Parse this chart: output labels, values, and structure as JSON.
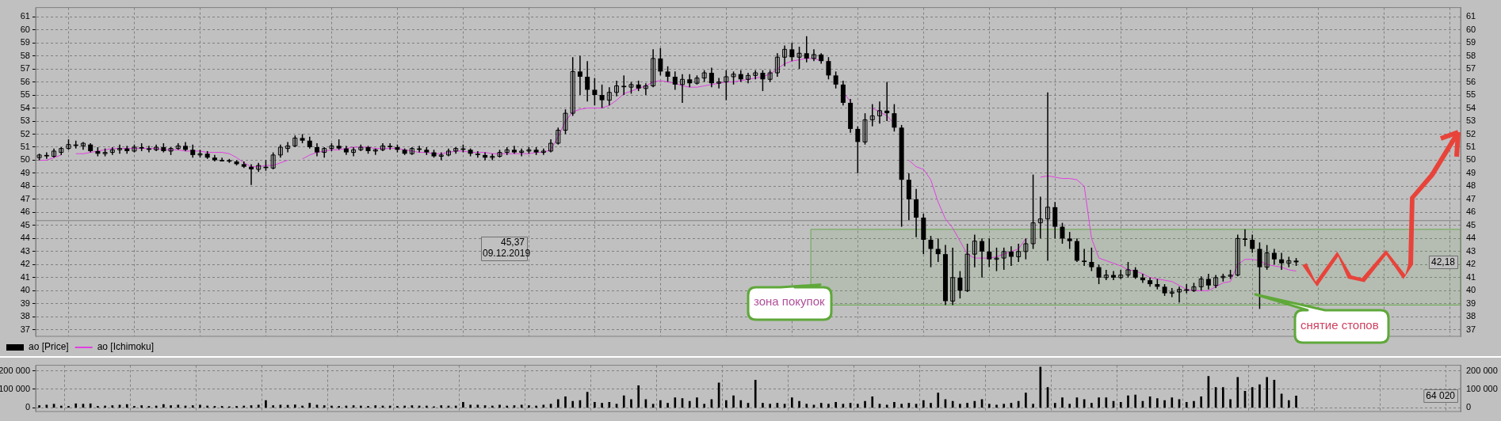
{
  "chart_data": [
    {
      "type": "candlestick",
      "categories": [
        null,
        null,
        null,
        null,
        null,
        null,
        null,
        null,
        null,
        null,
        null,
        null,
        null,
        null,
        null,
        null,
        null,
        null,
        null,
        null,
        null,
        null,
        null,
        null,
        null,
        null,
        null,
        null,
        null,
        null,
        null,
        null,
        null,
        null,
        null,
        null,
        null,
        null,
        null,
        null,
        null,
        null,
        null,
        null,
        null,
        null,
        null,
        null,
        null,
        null,
        null,
        null,
        null,
        null,
        null,
        null,
        null,
        null,
        null,
        null,
        null,
        null,
        null,
        null,
        null,
        null,
        null,
        null,
        null,
        null,
        null,
        null,
        null,
        null,
        null,
        null,
        null,
        null,
        null,
        null,
        null,
        null,
        null,
        null,
        null,
        null,
        null,
        null,
        null,
        null,
        null,
        null,
        null,
        null,
        null,
        null,
        null,
        null,
        null,
        null,
        null,
        null,
        null,
        null,
        null,
        null,
        null,
        null,
        null,
        null,
        null,
        null,
        null,
        null,
        null,
        null,
        null,
        null,
        null,
        null,
        null,
        null,
        null,
        null,
        null,
        null,
        null,
        null,
        null,
        null,
        null,
        null,
        null,
        null,
        null,
        null,
        null,
        null,
        null,
        null,
        null,
        null,
        null,
        null,
        null,
        null,
        null,
        null,
        null,
        null,
        null,
        null,
        null,
        null,
        null,
        null,
        null,
        null,
        null,
        null,
        null,
        null,
        null,
        null,
        null,
        null,
        null,
        null,
        null,
        null,
        null,
        null,
        null,
        null,
        null,
        null,
        null,
        null,
        null,
        null,
        null,
        null,
        null,
        null,
        null,
        null,
        null,
        null,
        null,
        null,
        null,
        null,
        null,
        null,
        null
      ],
      "series": [
        {
          "name": "ао [Price]",
          "type": "candlestick",
          "color": "#000000",
          "ohlc": [
            [
              50.2,
              50.5,
              50.0,
              50.4
            ],
            [
              50.4,
              50.6,
              50.1,
              50.3
            ],
            [
              50.3,
              50.9,
              50.2,
              50.7
            ],
            [
              50.6,
              51.0,
              50.4,
              50.9
            ],
            [
              50.9,
              51.6,
              50.8,
              51.2
            ],
            [
              51.2,
              51.5,
              50.9,
              51.1
            ],
            [
              51.1,
              51.4,
              50.8,
              51.3
            ],
            [
              51.2,
              51.3,
              50.6,
              50.7
            ],
            [
              50.7,
              51.0,
              50.3,
              50.5
            ],
            [
              50.5,
              50.9,
              50.3,
              50.6
            ],
            [
              50.6,
              51.0,
              50.4,
              50.8
            ],
            [
              50.8,
              51.2,
              50.5,
              50.9
            ],
            [
              50.9,
              51.1,
              50.5,
              50.7
            ],
            [
              50.7,
              51.2,
              50.6,
              51.0
            ],
            [
              51.0,
              51.3,
              50.7,
              50.9
            ],
            [
              50.9,
              51.1,
              50.6,
              50.8
            ],
            [
              50.8,
              51.2,
              50.7,
              51.0
            ],
            [
              51.0,
              51.3,
              50.6,
              50.7
            ],
            [
              50.7,
              51.0,
              50.4,
              50.9
            ],
            [
              50.9,
              51.3,
              50.8,
              51.1
            ],
            [
              51.1,
              51.4,
              50.7,
              50.8
            ],
            [
              50.8,
              51.2,
              50.2,
              50.4
            ],
            [
              50.4,
              50.8,
              50.2,
              50.5
            ],
            [
              50.5,
              50.7,
              50.1,
              50.2
            ],
            [
              50.2,
              50.4,
              49.9,
              50.0
            ],
            [
              50.0,
              50.2,
              49.9,
              50.0
            ],
            [
              50.0,
              50.1,
              49.8,
              49.9
            ],
            [
              49.9,
              50.0,
              49.6,
              49.7
            ],
            [
              49.7,
              49.9,
              49.4,
              49.5
            ],
            [
              49.5,
              49.7,
              48.1,
              49.3
            ],
            [
              49.3,
              49.8,
              49.1,
              49.6
            ],
            [
              49.5,
              50.0,
              49.2,
              49.4
            ],
            [
              49.4,
              50.6,
              49.3,
              50.4
            ],
            [
              50.4,
              51.2,
              50.2,
              51.0
            ],
            [
              50.9,
              51.4,
              50.6,
              51.1
            ],
            [
              51.1,
              51.9,
              51.0,
              51.7
            ],
            [
              51.7,
              52.0,
              51.3,
              51.5
            ],
            [
              51.5,
              51.8,
              50.9,
              51.0
            ],
            [
              51.0,
              51.3,
              50.3,
              50.6
            ],
            [
              50.6,
              51.0,
              50.2,
              50.9
            ],
            [
              50.9,
              51.3,
              50.7,
              51.1
            ],
            [
              51.1,
              51.6,
              50.8,
              50.9
            ],
            [
              50.9,
              51.1,
              50.4,
              50.6
            ],
            [
              50.6,
              51.0,
              50.3,
              50.8
            ],
            [
              50.8,
              51.2,
              50.7,
              51.0
            ],
            [
              51.0,
              51.1,
              50.5,
              50.7
            ],
            [
              50.7,
              50.9,
              50.4,
              50.8
            ],
            [
              50.8,
              51.3,
              50.7,
              51.1
            ],
            [
              51.1,
              51.3,
              50.8,
              51.0
            ],
            [
              51.0,
              51.2,
              50.6,
              50.8
            ],
            [
              50.8,
              50.9,
              50.4,
              50.5
            ],
            [
              50.5,
              51.0,
              50.4,
              50.9
            ],
            [
              50.9,
              51.1,
              50.6,
              50.8
            ],
            [
              50.8,
              51.0,
              50.4,
              50.6
            ],
            [
              50.6,
              50.8,
              50.2,
              50.3
            ],
            [
              50.3,
              50.6,
              50.0,
              50.4
            ],
            [
              50.4,
              50.9,
              50.3,
              50.7
            ],
            [
              50.7,
              51.0,
              50.5,
              50.9
            ],
            [
              50.9,
              51.2,
              50.6,
              50.8
            ],
            [
              50.8,
              50.9,
              50.3,
              50.5
            ],
            [
              50.5,
              50.7,
              50.2,
              50.4
            ],
            [
              50.4,
              50.6,
              50.0,
              50.2
            ],
            [
              50.2,
              50.5,
              50.0,
              50.3
            ],
            [
              50.3,
              50.8,
              50.2,
              50.6
            ],
            [
              50.6,
              51.0,
              50.4,
              50.8
            ],
            [
              50.8,
              51.1,
              50.5,
              50.6
            ],
            [
              50.6,
              50.9,
              50.3,
              50.7
            ],
            [
              50.7,
              51.0,
              50.5,
              50.8
            ],
            [
              50.8,
              51.0,
              50.4,
              50.6
            ],
            [
              50.6,
              50.9,
              50.4,
              50.7
            ],
            [
              50.7,
              51.6,
              50.6,
              51.3
            ],
            [
              51.3,
              52.5,
              51.2,
              52.3
            ],
            [
              52.3,
              53.9,
              52.0,
              53.6
            ],
            [
              53.6,
              57.9,
              53.4,
              56.8
            ],
            [
              56.8,
              58.0,
              55.0,
              56.4
            ],
            [
              56.4,
              57.6,
              54.5,
              55.4
            ],
            [
              55.4,
              56.3,
              54.2,
              55.0
            ],
            [
              55.0,
              55.8,
              54.0,
              54.6
            ],
            [
              54.6,
              55.6,
              54.2,
              55.2
            ],
            [
              55.2,
              56.1,
              54.9,
              55.7
            ],
            [
              55.7,
              56.5,
              55.0,
              55.6
            ],
            [
              55.6,
              56.0,
              55.1,
              55.8
            ],
            [
              55.8,
              56.1,
              55.3,
              55.5
            ],
            [
              55.5,
              55.9,
              55.0,
              55.7
            ],
            [
              55.7,
              58.5,
              55.6,
              57.8
            ],
            [
              57.8,
              58.6,
              56.5,
              56.8
            ],
            [
              56.8,
              57.2,
              56.0,
              56.4
            ],
            [
              56.4,
              56.8,
              55.4,
              55.8
            ],
            [
              55.8,
              56.6,
              54.4,
              56.2
            ],
            [
              56.2,
              56.6,
              55.6,
              55.9
            ],
            [
              55.9,
              56.5,
              55.8,
              56.3
            ],
            [
              56.3,
              56.9,
              56.0,
              56.7
            ],
            [
              56.7,
              57.1,
              55.6,
              55.9
            ],
            [
              55.9,
              56.3,
              55.5,
              56.0
            ],
            [
              56.0,
              56.9,
              54.6,
              56.4
            ],
            [
              56.4,
              56.8,
              55.8,
              56.6
            ],
            [
              56.6,
              56.9,
              56.0,
              56.2
            ],
            [
              56.2,
              56.7,
              55.9,
              56.5
            ],
            [
              56.5,
              56.9,
              56.2,
              56.7
            ],
            [
              56.7,
              56.9,
              55.3,
              56.2
            ],
            [
              56.2,
              56.9,
              56.0,
              56.7
            ],
            [
              56.7,
              58.2,
              56.4,
              57.9
            ],
            [
              57.9,
              58.8,
              57.2,
              58.5
            ],
            [
              58.5,
              59.0,
              57.6,
              57.9
            ],
            [
              57.9,
              58.7,
              57.0,
              58.2
            ],
            [
              58.2,
              59.5,
              57.5,
              57.8
            ],
            [
              57.8,
              58.5,
              57.6,
              58.1
            ],
            [
              58.1,
              58.2,
              57.4,
              57.6
            ],
            [
              57.6,
              57.9,
              56.2,
              56.5
            ],
            [
              56.5,
              56.8,
              55.5,
              55.8
            ],
            [
              55.8,
              56.1,
              54.2,
              54.4
            ],
            [
              54.4,
              54.7,
              52.1,
              52.4
            ],
            [
              52.4,
              52.6,
              49.0,
              51.4
            ],
            [
              51.4,
              53.6,
              51.2,
              53.1
            ],
            [
              53.1,
              54.3,
              52.6,
              53.4
            ],
            [
              53.4,
              54.5,
              52.8,
              53.8
            ],
            [
              53.8,
              56.0,
              53.0,
              53.6
            ],
            [
              53.6,
              54.3,
              52.2,
              52.5
            ],
            [
              52.5,
              52.7,
              44.9,
              48.5
            ],
            [
              48.5,
              49.0,
              45.4,
              47.0
            ],
            [
              47.0,
              47.8,
              44.1,
              45.6
            ],
            [
              45.6,
              45.9,
              42.8,
              43.9
            ],
            [
              43.9,
              44.2,
              41.8,
              43.2
            ],
            [
              43.2,
              44.0,
              42.2,
              42.8
            ],
            [
              42.8,
              43.5,
              38.9,
              39.2
            ],
            [
              39.2,
              43.3,
              38.9,
              41.0
            ],
            [
              41.0,
              41.5,
              39.4,
              40.0
            ],
            [
              40.0,
              43.6,
              39.9,
              42.8
            ],
            [
              42.8,
              44.3,
              41.8,
              43.8
            ],
            [
              43.8,
              44.0,
              41.0,
              43.0
            ],
            [
              43.0,
              44.0,
              41.8,
              42.4
            ],
            [
              42.4,
              43.3,
              41.5,
              42.5
            ],
            [
              42.5,
              43.3,
              41.6,
              43.0
            ],
            [
              43.0,
              43.4,
              41.9,
              42.6
            ],
            [
              42.6,
              43.6,
              42.2,
              43.0
            ],
            [
              43.0,
              44.0,
              42.4,
              43.6
            ],
            [
              43.6,
              48.9,
              43.2,
              45.2
            ],
            [
              45.2,
              47.2,
              44.0,
              45.5
            ],
            [
              45.5,
              55.2,
              42.3,
              46.4
            ],
            [
              46.4,
              46.8,
              44.0,
              44.9
            ],
            [
              44.9,
              45.2,
              43.6,
              44.0
            ],
            [
              44.0,
              44.5,
              43.2,
              43.8
            ],
            [
              43.8,
              44.0,
              42.2,
              42.3
            ],
            [
              42.3,
              43.2,
              41.9,
              42.2
            ],
            [
              42.2,
              43.3,
              41.5,
              41.8
            ],
            [
              41.8,
              42.0,
              40.5,
              41.0
            ],
            [
              41.0,
              41.6,
              40.8,
              41.2
            ],
            [
              41.2,
              41.5,
              40.8,
              41.0
            ],
            [
              41.0,
              41.6,
              40.9,
              41.2
            ],
            [
              41.2,
              42.2,
              41.0,
              41.6
            ],
            [
              41.6,
              41.8,
              40.9,
              41.0
            ],
            [
              41.0,
              41.3,
              40.6,
              40.8
            ],
            [
              40.8,
              41.0,
              40.3,
              40.5
            ],
            [
              40.5,
              40.9,
              40.1,
              40.3
            ],
            [
              40.3,
              40.5,
              39.6,
              39.8
            ],
            [
              39.8,
              40.2,
              39.5,
              39.9
            ],
            [
              39.9,
              40.3,
              39.1,
              40.1
            ],
            [
              40.1,
              40.5,
              39.8,
              40.0
            ],
            [
              40.0,
              40.6,
              39.9,
              40.3
            ],
            [
              40.3,
              41.1,
              40.0,
              40.9
            ],
            [
              40.9,
              41.3,
              40.1,
              40.4
            ],
            [
              40.4,
              41.2,
              40.2,
              41.0
            ],
            [
              41.0,
              41.3,
              40.7,
              41.1
            ],
            [
              41.1,
              41.6,
              40.9,
              41.2
            ],
            [
              41.2,
              44.3,
              41.1,
              44.0
            ],
            [
              44.0,
              44.7,
              43.4,
              43.9
            ],
            [
              43.9,
              44.3,
              42.9,
              43.2
            ],
            [
              43.2,
              43.7,
              38.6,
              41.8
            ],
            [
              41.8,
              43.5,
              41.6,
              42.9
            ],
            [
              42.9,
              43.2,
              42.0,
              42.4
            ],
            [
              42.4,
              42.9,
              41.6,
              42.1
            ],
            [
              42.1,
              42.6,
              41.8,
              42.3
            ],
            [
              42.3,
              42.5,
              41.9,
              42.18
            ],
            null,
            null,
            null,
            null,
            null,
            null,
            null,
            null,
            null,
            null,
            null,
            null,
            null,
            null,
            null,
            null,
            null,
            null,
            null,
            null,
            null,
            null
          ]
        },
        {
          "name": "ао [Ichimoku]",
          "type": "line",
          "color": "#e040e0",
          "values": [
            50.0,
            50.0,
            50.2,
            50.4,
            null,
            50.5,
            50.5,
            50.6,
            50.7,
            50.8,
            50.9,
            50.9,
            50.9,
            50.9,
            50.9,
            50.9,
            50.9,
            50.8,
            50.8,
            50.8,
            50.7,
            50.7,
            50.7,
            50.6,
            50.6,
            50.6,
            50.5,
            50.2,
            49.8,
            49.5,
            49.5,
            49.6,
            49.6,
            49.8,
            50.0,
            null,
            50.1,
            50.4,
            50.6,
            50.7,
            50.8,
            50.8,
            50.9,
            51.0,
            51.0,
            51.0,
            50.9,
            50.9,
            50.9,
            50.9,
            50.8,
            50.7,
            50.6,
            50.6,
            50.5,
            50.5,
            50.6,
            50.7,
            50.7,
            50.6,
            50.6,
            50.6,
            50.5,
            50.5,
            50.5,
            50.5,
            50.5,
            50.5,
            50.6,
            50.6,
            50.8,
            51.8,
            53.0,
            53.7,
            53.9,
            54.0,
            54.0,
            54.0,
            54.2,
            54.6,
            55.1,
            55.3,
            55.5,
            55.7,
            56.0,
            56.1,
            56.0,
            55.9,
            55.7,
            55.6,
            55.6,
            55.7,
            55.8,
            55.9,
            56.0,
            56.0,
            56.1,
            56.2,
            56.3,
            56.4,
            56.6,
            57.0,
            57.4,
            57.6,
            57.7,
            57.8,
            57.8,
            57.6,
            null,
            null,
            55.2,
            54.5,
            null,
            null,
            54.0,
            53.7,
            53.4,
            52.8,
            null,
            50.0,
            49.5,
            49.3,
            48.5,
            46.8,
            45.5,
            44.8,
            43.8,
            42.8,
            42.5,
            42.5,
            42.5,
            42.6,
            42.8,
            43.0,
            43.2,
            44.0,
            null,
            48.7,
            48.8,
            48.7,
            48.6,
            48.6,
            48.5,
            48.0,
            44.0,
            42.5,
            42.3,
            42.1,
            41.9,
            41.6,
            41.5,
            41.3,
            41.0,
            40.9,
            40.8,
            40.7,
            40.4,
            40.1,
            40.0,
            40.0,
            40.0,
            40.3,
            40.6,
            40.7,
            42.0,
            42.4,
            42.4,
            42.3,
            42.0,
            41.9,
            41.8,
            41.6,
            41.5,
            null,
            null,
            null,
            null,
            null,
            null,
            null,
            null,
            null,
            null,
            null,
            null,
            null,
            null,
            null,
            null,
            null,
            null,
            null,
            null,
            null,
            null
          ]
        }
      ],
      "ylim": [
        36.5,
        61.7
      ],
      "yticks": [
        37,
        38,
        39,
        40,
        41,
        42,
        43,
        44,
        45,
        46,
        47,
        48,
        49,
        50,
        51,
        52,
        53,
        54,
        55,
        56,
        57,
        58,
        59,
        60,
        61
      ],
      "y2lim": [
        36.5,
        61.7
      ],
      "y2ticks": [
        37,
        38,
        39,
        40,
        41,
        42,
        43,
        44,
        45,
        46,
        47,
        48,
        49,
        50,
        51,
        52,
        53,
        54,
        55,
        56,
        57,
        58,
        59,
        60,
        61
      ],
      "grid": true,
      "legend": "bottom left",
      "marker": "none",
      "line_style": "solid",
      "bands": [
        {
          "axis": "y",
          "from": 38.9,
          "to": 44.7,
          "label": "зона покупок",
          "color": "#6aa84f"
        }
      ],
      "ref_lines": [
        {
          "axis": "y",
          "value": 45.37,
          "label": "45,37",
          "color": "#808080"
        }
      ],
      "annotations": [
        "09.12.2019",
        "42,18",
        "снятие стопов"
      ]
    },
    {
      "type": "bar",
      "categories": [
        null,
        null,
        null,
        null,
        null,
        null,
        null,
        null,
        null,
        null,
        null,
        null,
        null,
        null,
        null,
        null,
        null,
        null,
        null,
        null,
        null,
        null,
        null,
        null,
        null,
        null,
        null,
        null,
        null,
        null,
        null,
        null,
        null,
        null,
        null,
        null,
        null,
        null,
        null,
        null,
        null,
        null,
        null,
        null,
        null,
        null,
        null,
        null,
        null,
        null,
        null,
        null,
        null,
        null,
        null,
        null,
        null,
        null,
        null,
        null,
        null,
        null,
        null,
        null,
        null,
        null,
        null,
        null,
        null,
        null,
        null,
        null,
        null,
        null,
        null,
        null,
        null,
        null,
        null,
        null,
        null,
        null,
        null,
        null,
        null,
        null,
        null,
        null,
        null,
        null,
        null,
        null,
        null,
        null,
        null,
        null,
        null,
        null,
        null,
        null,
        null,
        null,
        null,
        null,
        null,
        null,
        null,
        null,
        null,
        null,
        null,
        null,
        null,
        null,
        null,
        null,
        null,
        null,
        null,
        null,
        null,
        null,
        null,
        null,
        null,
        null,
        null,
        null,
        null,
        null,
        null,
        null,
        null,
        null,
        null,
        null,
        null,
        null,
        null,
        null,
        null,
        null,
        null,
        null,
        null,
        null,
        null,
        null,
        null,
        null,
        null,
        null,
        null,
        null,
        null,
        null,
        null,
        null,
        null,
        null,
        null,
        null,
        null,
        null,
        null,
        null,
        null,
        null,
        null,
        null,
        null,
        null,
        null,
        null,
        null,
        null,
        null,
        null,
        null,
        null,
        null,
        null,
        null,
        null,
        null,
        null,
        null,
        null,
        null,
        null,
        null,
        null,
        null,
        null,
        null
      ],
      "values": [
        12000,
        15000,
        20000,
        10000,
        8000,
        22000,
        20000,
        22000,
        8000,
        10000,
        12000,
        15000,
        18000,
        8000,
        12000,
        8000,
        10000,
        18000,
        12000,
        15000,
        10000,
        12000,
        15000,
        10000,
        8000,
        8000,
        6000,
        8000,
        10000,
        12000,
        15000,
        40000,
        12000,
        15000,
        14000,
        16000,
        10000,
        25000,
        15000,
        12000,
        10000,
        8000,
        10000,
        12000,
        10000,
        8000,
        12000,
        10000,
        10000,
        8000,
        10000,
        12000,
        10000,
        10000,
        6000,
        12000,
        10000,
        10000,
        30000,
        15000,
        15000,
        12000,
        10000,
        15000,
        10000,
        12000,
        15000,
        12000,
        10000,
        15000,
        20000,
        45000,
        60000,
        35000,
        40000,
        85000,
        30000,
        25000,
        30000,
        20000,
        65000,
        45000,
        120000,
        45000,
        20000,
        40000,
        25000,
        55000,
        50000,
        35000,
        55000,
        20000,
        45000,
        135000,
        40000,
        65000,
        40000,
        25000,
        150000,
        25000,
        20000,
        25000,
        20000,
        55000,
        35000,
        20000,
        15000,
        25000,
        20000,
        30000,
        20000,
        25000,
        20000,
        35000,
        60000,
        20000,
        15000,
        30000,
        20000,
        25000,
        20000,
        40000,
        25000,
        80000,
        45000,
        35000,
        20000,
        25000,
        35000,
        45000,
        20000,
        15000,
        20000,
        25000,
        35000,
        80000,
        20000,
        220000,
        110000,
        25000,
        55000,
        20000,
        55000,
        45000,
        25000,
        55000,
        55000,
        35000,
        30000,
        65000,
        70000,
        35000,
        60000,
        50000,
        40000,
        55000,
        45000,
        30000,
        35000,
        60000,
        170000,
        110000,
        110000,
        45000,
        165000,
        90000,
        110000,
        125000,
        165000,
        150000,
        75000,
        40000,
        64020,
        null,
        null,
        null,
        null,
        null,
        null,
        null,
        null,
        null,
        null,
        null,
        null,
        null,
        null,
        null,
        null,
        null,
        null,
        null,
        null,
        null,
        null
      ],
      "color": "#000000",
      "ylim": [
        -20000,
        230000
      ],
      "yticks": [
        0,
        {
          "value": 100000,
          "label": "100 000"
        },
        {
          "value": 200000,
          "label": "200 000"
        }
      ],
      "y2lim": [
        -20000,
        230000
      ],
      "y2ticks": [
        0,
        {
          "value": 100000,
          "label": "100 000"
        },
        {
          "value": 200000,
          "label": "200 000"
        }
      ],
      "grid": true,
      "annotations": [
        "64 020"
      ]
    }
  ]
}
